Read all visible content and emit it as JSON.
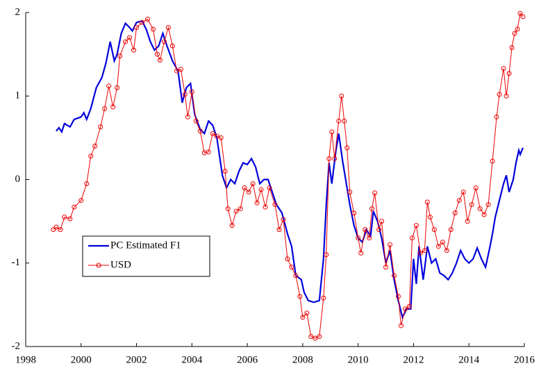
{
  "chart_data": {
    "type": "line",
    "xlim": [
      1998,
      2016
    ],
    "xticks": [
      1998,
      2000,
      2002,
      2004,
      2006,
      2008,
      2010,
      2012,
      2014,
      2016
    ],
    "ylim": [
      -2,
      2
    ],
    "yticks": [
      -2,
      -1,
      0,
      1,
      2
    ],
    "grid": false,
    "legend": "lower-left",
    "series": [
      {
        "name": "PC Estimated F1",
        "color": "#0000dd",
        "marker": false,
        "x": [
          1999.1,
          1999.2,
          1999.3,
          1999.4,
          1999.6,
          1999.75,
          2000.0,
          2000.1,
          2000.2,
          2000.35,
          2000.55,
          2000.75,
          2000.9,
          2001.05,
          2001.2,
          2001.3,
          2001.45,
          2001.6,
          2001.75,
          2001.85,
          2002.0,
          2002.2,
          2002.35,
          2002.5,
          2002.65,
          2002.8,
          2002.95,
          2003.1,
          2003.3,
          2003.5,
          2003.65,
          2003.8,
          2003.95,
          2004.1,
          2004.3,
          2004.45,
          2004.6,
          2004.75,
          2004.9,
          2005.1,
          2005.25,
          2005.4,
          2005.55,
          2005.7,
          2005.85,
          2006.0,
          2006.15,
          2006.3,
          2006.45,
          2006.6,
          2006.75,
          2006.9,
          2007.05,
          2007.25,
          2007.45,
          2007.6,
          2007.75,
          2007.95,
          2008.05,
          2008.2,
          2008.4,
          2008.6,
          2008.75,
          2008.85,
          2008.95,
          2009.05,
          2009.2,
          2009.3,
          2009.45,
          2009.55,
          2009.7,
          2009.85,
          2010.0,
          2010.15,
          2010.3,
          2010.45,
          2010.55,
          2010.7,
          2010.85,
          2011.0,
          2011.15,
          2011.3,
          2011.45,
          2011.6,
          2011.75,
          2011.9,
          2012.0,
          2012.1,
          2012.2,
          2012.35,
          2012.5,
          2012.65,
          2012.8,
          2012.95,
          2013.1,
          2013.25,
          2013.4,
          2013.55,
          2013.7,
          2013.85,
          2014.0,
          2014.15,
          2014.3,
          2014.45,
          2014.6,
          2014.75,
          2014.85,
          2014.95,
          2015.1,
          2015.25,
          2015.35,
          2015.45,
          2015.6,
          2015.7,
          2015.8,
          2015.85,
          2015.95
        ],
        "values": [
          0.58,
          0.62,
          0.57,
          0.67,
          0.63,
          0.72,
          0.75,
          0.8,
          0.72,
          0.85,
          1.1,
          1.22,
          1.4,
          1.65,
          1.42,
          1.5,
          1.75,
          1.87,
          1.82,
          1.78,
          1.88,
          1.9,
          1.8,
          1.65,
          1.55,
          1.6,
          1.75,
          1.6,
          1.42,
          1.3,
          0.92,
          1.1,
          1.15,
          0.78,
          0.6,
          0.55,
          0.7,
          0.65,
          0.5,
          0.05,
          -0.1,
          0.0,
          -0.05,
          0.1,
          0.2,
          0.18,
          0.25,
          0.15,
          -0.05,
          0.0,
          0.0,
          -0.15,
          -0.3,
          -0.4,
          -0.65,
          -0.8,
          -1.15,
          -1.2,
          -1.35,
          -1.45,
          -1.47,
          -1.45,
          -0.95,
          -0.3,
          0.2,
          -0.05,
          0.35,
          0.55,
          0.2,
          0.0,
          -0.3,
          -0.55,
          -0.7,
          -0.75,
          -0.6,
          -0.68,
          -0.38,
          -0.5,
          -0.7,
          -1.0,
          -0.85,
          -1.2,
          -1.45,
          -1.65,
          -1.55,
          -1.55,
          -0.95,
          -1.25,
          -0.8,
          -1.2,
          -0.8,
          -1.0,
          -0.95,
          -1.12,
          -1.15,
          -1.2,
          -1.12,
          -1.0,
          -0.85,
          -0.95,
          -1.0,
          -0.95,
          -0.82,
          -0.95,
          -1.05,
          -0.82,
          -0.65,
          -0.45,
          -0.25,
          -0.05,
          0.05,
          -0.15,
          0.0,
          0.2,
          0.35,
          0.3,
          0.38
        ]
      },
      {
        "name": "USD",
        "color": "#ee0000",
        "marker": true,
        "x": [
          1999.0,
          1999.1,
          1999.25,
          1999.4,
          1999.6,
          1999.75,
          2000.0,
          2000.2,
          2000.35,
          2000.5,
          2000.7,
          2000.85,
          2001.0,
          2001.15,
          2001.3,
          2001.4,
          2001.6,
          2001.75,
          2001.9,
          2002.0,
          2002.2,
          2002.4,
          2002.6,
          2002.75,
          2002.85,
          2003.0,
          2003.15,
          2003.3,
          2003.45,
          2003.6,
          2003.75,
          2003.85,
          2004.0,
          2004.15,
          2004.3,
          2004.45,
          2004.6,
          2004.75,
          2004.9,
          2005.05,
          2005.2,
          2005.3,
          2005.45,
          2005.6,
          2005.75,
          2005.9,
          2006.05,
          2006.2,
          2006.35,
          2006.5,
          2006.65,
          2006.8,
          2007.0,
          2007.15,
          2007.3,
          2007.45,
          2007.6,
          2007.75,
          2007.9,
          2008.0,
          2008.15,
          2008.3,
          2008.45,
          2008.6,
          2008.75,
          2008.85,
          2008.95,
          2009.05,
          2009.15,
          2009.3,
          2009.4,
          2009.5,
          2009.6,
          2009.7,
          2009.85,
          2010.0,
          2010.1,
          2010.25,
          2010.4,
          2010.5,
          2010.6,
          2010.75,
          2010.85,
          2011.0,
          2011.15,
          2011.3,
          2011.45,
          2011.55,
          2011.7,
          2011.85,
          2011.95,
          2012.1,
          2012.25,
          2012.4,
          2012.5,
          2012.6,
          2012.75,
          2012.9,
          2013.05,
          2013.2,
          2013.35,
          2013.5,
          2013.65,
          2013.8,
          2013.95,
          2014.1,
          2014.25,
          2014.4,
          2014.55,
          2014.7,
          2014.85,
          2015.0,
          2015.1,
          2015.25,
          2015.35,
          2015.45,
          2015.55,
          2015.65,
          2015.75,
          2015.85,
          2015.95
        ],
        "values": [
          -0.6,
          -0.57,
          -0.6,
          -0.45,
          -0.47,
          -0.33,
          -0.25,
          -0.05,
          0.28,
          0.4,
          0.63,
          0.85,
          1.12,
          0.87,
          1.1,
          1.48,
          1.65,
          1.7,
          1.55,
          1.82,
          1.88,
          1.92,
          1.8,
          1.5,
          1.43,
          1.65,
          1.82,
          1.6,
          1.3,
          1.32,
          1.02,
          0.75,
          1.05,
          0.7,
          0.58,
          0.32,
          0.33,
          0.55,
          0.52,
          0.5,
          0.1,
          -0.35,
          -0.55,
          -0.38,
          -0.35,
          -0.1,
          -0.15,
          -0.05,
          -0.28,
          -0.12,
          -0.33,
          -0.1,
          -0.3,
          -0.6,
          -0.48,
          -0.95,
          -1.05,
          -1.15,
          -1.4,
          -1.65,
          -1.6,
          -1.88,
          -1.9,
          -1.88,
          -1.42,
          -0.9,
          0.25,
          0.57,
          0.25,
          0.7,
          1.0,
          0.7,
          0.38,
          -0.15,
          -0.4,
          -0.7,
          -0.88,
          -0.6,
          -0.7,
          -0.35,
          -0.16,
          -0.6,
          -0.5,
          -1.05,
          -0.78,
          -1.15,
          -1.4,
          -1.75,
          -1.55,
          -1.52,
          -0.7,
          -0.55,
          -0.88,
          -0.85,
          -0.27,
          -0.45,
          -0.6,
          -0.8,
          -0.75,
          -0.85,
          -0.6,
          -0.4,
          -0.25,
          -0.15,
          -0.5,
          -0.3,
          -0.1,
          -0.35,
          -0.42,
          -0.3,
          0.22,
          0.75,
          1.02,
          1.33,
          1.0,
          1.27,
          1.58,
          1.75,
          1.8,
          1.99,
          1.95
        ]
      }
    ]
  }
}
